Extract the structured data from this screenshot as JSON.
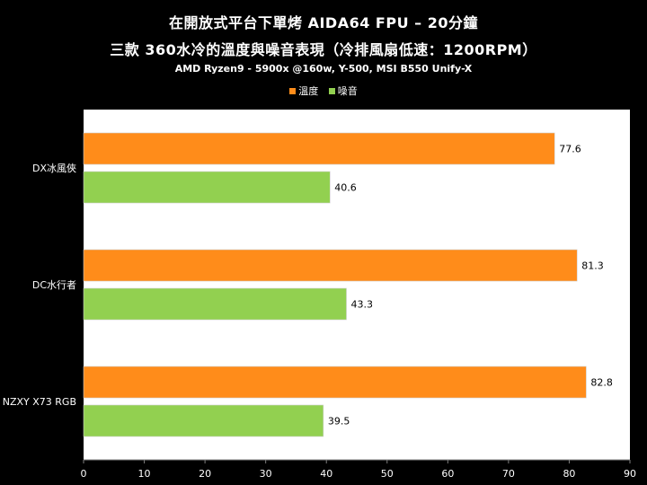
{
  "chart_data": {
    "type": "bar",
    "orientation": "horizontal",
    "title": "在開放式平台下單烤 AIDA64 FPU – 20分鐘",
    "title_line2": "三款 360水冷的溫度與噪音表現（冷排風扇低速：1200RPM）",
    "subtitle": "AMD Ryzen9 - 5900x @160w, Y-500, MSI B550 Unify-X",
    "xlabel": "",
    "ylabel": "",
    "xlim": [
      0,
      90
    ],
    "xticks": [
      "0",
      "10",
      "20",
      "30",
      "40",
      "50",
      "60",
      "70",
      "80",
      "90"
    ],
    "categories": [
      "DX冰風俠",
      "DC水行者",
      "NZXY X73 RGB"
    ],
    "series": [
      {
        "name": "溫度",
        "color": "#ff8c1a",
        "values": [
          77.6,
          81.3,
          82.8
        ],
        "labels": [
          "77.6",
          "81.3",
          "82.8"
        ]
      },
      {
        "name": "噪音",
        "color": "#92d050",
        "values": [
          40.6,
          43.3,
          39.5
        ],
        "labels": [
          "40.6",
          "43.3",
          "39.5"
        ]
      }
    ],
    "legend_position": "top-center",
    "grid": false,
    "colors": {
      "background": "#000000",
      "plot_background": "#ffffff",
      "text": "#ffffff",
      "axis": "#7f7f7f"
    }
  }
}
